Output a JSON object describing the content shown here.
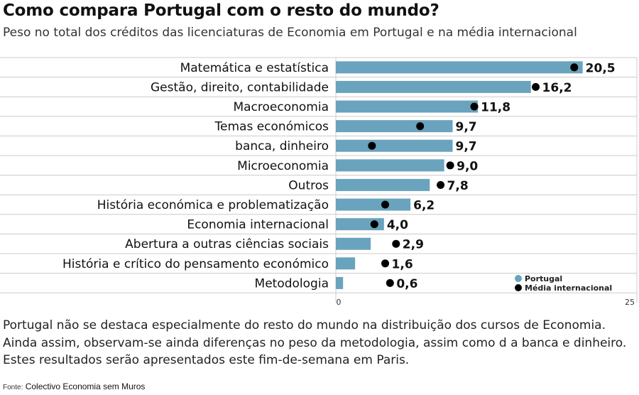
{
  "title": "Como compara Portugal com o resto do mundo?",
  "subtitle": "Peso no total dos créditos das licenciaturas de Economia em Portugal e na média internacional",
  "note": "Portugal não se destaca especialmente do resto do mundo na distribuição dos cursos de Economia. Ainda assim, observam-se ainda diferenças no peso da metodologia, assim como d a banca e dinheiro. Estes resultados serão apresentados este fim-de-semana em Paris.",
  "source": {
    "label": "Fonte:",
    "value": "Colectivo Economia sem Muros"
  },
  "chart_data": {
    "type": "bar",
    "orientation": "horizontal",
    "categories": [
      "Matemática e estatística",
      "Gestão, direito, contabilidade",
      "Macroeconomia",
      "Temas económicos",
      "banca, dinheiro",
      "Microeconomia",
      "Outros",
      "História económica e problematização",
      "Economia internacional",
      "Abertura a outras ciências sociais",
      "História e crítico do pensamento económico",
      "Metodologia"
    ],
    "series": [
      {
        "name": "Portugal",
        "type": "bar",
        "color": "#6aa3bd",
        "values": [
          20.5,
          16.2,
          11.8,
          9.7,
          9.7,
          9.0,
          7.8,
          6.2,
          4.0,
          2.9,
          1.6,
          0.6
        ],
        "labels": [
          "20,5",
          "16,2",
          "11,8",
          "9,7",
          "9,7",
          "9,0",
          "7,8",
          "6,2",
          "4,0",
          "2,9",
          "1,6",
          "0,6"
        ]
      },
      {
        "name": "Média internacional",
        "type": "dot",
        "color": "#000000",
        "values": [
          19.8,
          16.6,
          11.5,
          7.0,
          3.0,
          9.5,
          8.7,
          4.1,
          3.2,
          5.0,
          4.1,
          4.5
        ]
      }
    ],
    "xlim": [
      0,
      25
    ],
    "xticks": [
      "0",
      "25"
    ],
    "grid": true,
    "legend_position": "bottom-right"
  }
}
